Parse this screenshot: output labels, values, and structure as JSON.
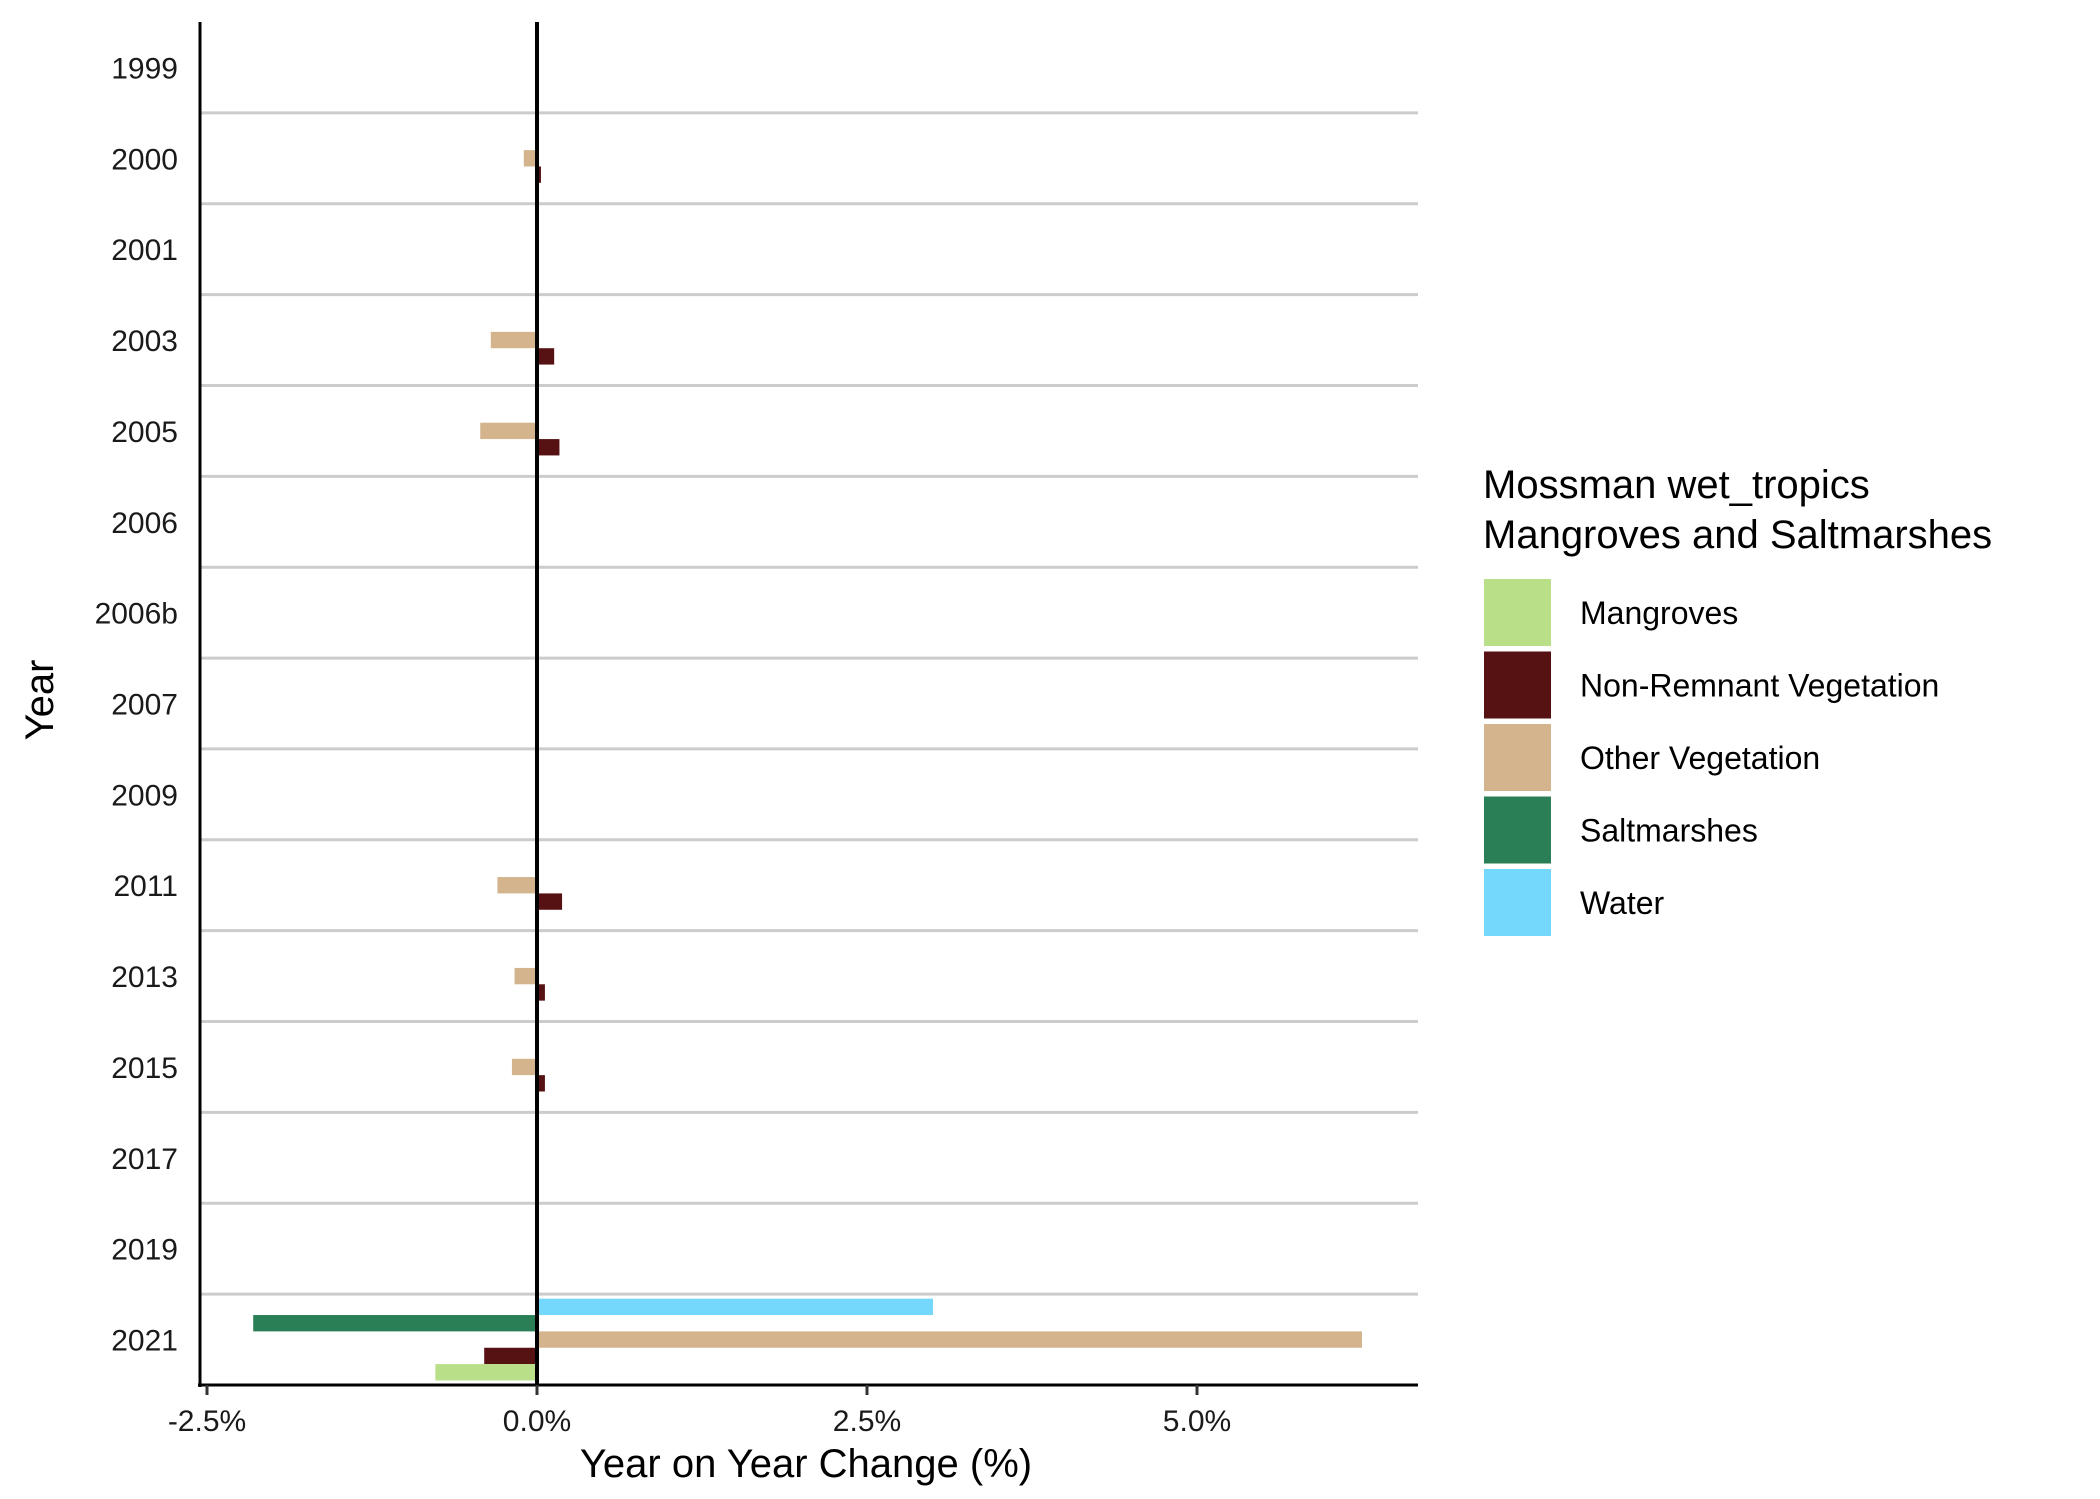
{
  "chart_data": {
    "type": "bar",
    "orientation": "horizontal",
    "xlabel": "Year on Year Change (%)",
    "ylabel": "Year",
    "xlim": [
      -2.6,
      6.6
    ],
    "xticks": [
      -2.5,
      0.0,
      2.5,
      5.0
    ],
    "xtick_labels": [
      "-2.5%",
      "0.0%",
      "2.5%",
      "5.0%"
    ],
    "grid": "horizontal separators between years",
    "legend_title": [
      "Mossman wet_tropics",
      "Mangroves and Saltmarshes"
    ],
    "legend_position": "right",
    "categories": [
      "1999",
      "2000",
      "2001",
      "2003",
      "2005",
      "2006",
      "2006b",
      "2007",
      "2009",
      "2011",
      "2013",
      "2015",
      "2017",
      "2019",
      "2021"
    ],
    "series": [
      {
        "name": "Water",
        "color": "#74d8fc",
        "values": [
          0,
          0,
          0,
          0,
          0,
          0,
          0,
          0,
          0,
          0,
          0,
          0,
          0,
          0,
          3.0
        ]
      },
      {
        "name": "Saltmarshes",
        "color": "#2a7f57",
        "values": [
          0,
          0,
          0,
          0,
          0,
          0,
          0,
          0,
          0,
          0,
          0,
          0,
          0,
          0,
          -2.15
        ]
      },
      {
        "name": "Other Vegetation",
        "color": "#d3b48c",
        "values": [
          0,
          -0.1,
          0,
          -0.35,
          -0.43,
          0,
          0,
          0,
          0,
          -0.3,
          -0.17,
          -0.19,
          0,
          0,
          6.25
        ]
      },
      {
        "name": "Non-Remnant Vegetation",
        "color": "#561113",
        "values": [
          0,
          0.03,
          0,
          0.13,
          0.17,
          0,
          0,
          0,
          0,
          0.19,
          0.06,
          0.06,
          0,
          0,
          -0.4
        ]
      },
      {
        "name": "Mangroves",
        "color": "#b9df89",
        "values": [
          0,
          0,
          0,
          0,
          0,
          0,
          0,
          0,
          0,
          0,
          0,
          0,
          0,
          0,
          -0.77
        ]
      }
    ],
    "legend_order": [
      "Mangroves",
      "Non-Remnant Vegetation",
      "Other Vegetation",
      "Saltmarshes",
      "Water"
    ]
  }
}
